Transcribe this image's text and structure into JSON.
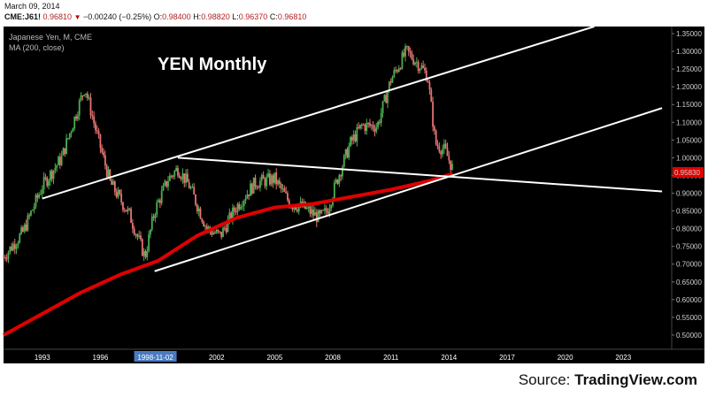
{
  "header": {
    "date": "March 09, 2014",
    "symbol": "CME:J61!",
    "last": "0.96810",
    "change": "−0.00240 (−0.25%)",
    "open_label": "O:",
    "open": "0.98400",
    "high_label": "H:",
    "high": "0.98820",
    "low_label": "L:",
    "low": "0.96370",
    "close_label": "C:",
    "close": "0.96810"
  },
  "legend": {
    "instrument": "Japanese Yen, M, CME",
    "ma": "MA (200, close)"
  },
  "annotation": "YEN Monthly",
  "source": {
    "prefix": "Source: ",
    "brand": "TradingView.com"
  },
  "colors": {
    "background": "#000000",
    "up_candle": "#4caf50",
    "down_candle": "#e57373",
    "ma_line": "#e00000",
    "trendline": "#ffffff",
    "price_marker": "#e00000"
  },
  "chart_data": {
    "type": "candlestick",
    "title": "YEN Monthly",
    "series": [
      {
        "name": "Japanese Yen, M, CME",
        "x": [
          1991.0,
          1992.0,
          1993.0,
          1994.0,
          1995.2,
          1995.8,
          1996.5,
          1997.5,
          1998.3,
          1998.8,
          1999.5,
          2000.0,
          2000.6,
          2001.5,
          2002.2,
          2003.0,
          2004.0,
          2005.0,
          2005.8,
          2006.5,
          2007.3,
          2007.7,
          2008.3,
          2008.9,
          2009.5,
          2010.3,
          2011.0,
          2011.3,
          2011.8,
          2012.5,
          2012.9,
          2013.3,
          2013.8,
          2014.2
        ],
        "values": [
          0.72,
          0.79,
          0.92,
          1.0,
          1.2,
          1.07,
          0.93,
          0.84,
          0.72,
          0.85,
          0.94,
          0.97,
          0.92,
          0.8,
          0.78,
          0.86,
          0.93,
          0.94,
          0.87,
          0.86,
          0.83,
          0.85,
          0.95,
          1.04,
          1.09,
          1.09,
          1.22,
          1.25,
          1.3,
          1.26,
          1.23,
          1.04,
          1.02,
          0.968
        ]
      },
      {
        "name": "MA (200, close)",
        "x": [
          1991.0,
          1993.0,
          1995.0,
          1997.0,
          1999.0,
          2001.0,
          2003.0,
          2005.0,
          2007.0,
          2009.0,
          2011.0,
          2013.0,
          2014.2
        ],
        "values": [
          0.5,
          0.56,
          0.62,
          0.67,
          0.71,
          0.78,
          0.83,
          0.86,
          0.87,
          0.89,
          0.91,
          0.935,
          0.955
        ]
      }
    ],
    "trendlines": [
      {
        "name": "upper channel",
        "from": [
          1993.0,
          0.885
        ],
        "to": [
          2021.5,
          1.37
        ]
      },
      {
        "name": "lower channel",
        "from": [
          1998.8,
          0.68
        ],
        "to": [
          2025.0,
          1.14
        ]
      },
      {
        "name": "resistance",
        "from": [
          2000.0,
          1.0
        ],
        "to": [
          2025.0,
          0.905
        ]
      }
    ],
    "price_marker": "0.95830",
    "ylim": [
      0.46,
      1.37
    ],
    "xlim": [
      1991.0,
      2025.5
    ],
    "y_ticks": [
      "0.50000",
      "0.55000",
      "0.60000",
      "0.65000",
      "0.70000",
      "0.75000",
      "0.80000",
      "0.85000",
      "0.90000",
      "0.95000",
      "1.00000",
      "1.05000",
      "1.10000",
      "1.15000",
      "1.20000",
      "1.25000",
      "1.30000",
      "1.35000"
    ],
    "x_ticks": [
      "1993",
      "1996",
      "1998-11-02",
      "2002",
      "2005",
      "2008",
      "2011",
      "2014",
      "2017",
      "2020",
      "2023"
    ],
    "x_tick_years": [
      1993,
      1996,
      1998.84,
      2002,
      2005,
      2008,
      2011,
      2014,
      2017,
      2020,
      2023
    ],
    "highlighted_tick": "1998-11-02"
  }
}
